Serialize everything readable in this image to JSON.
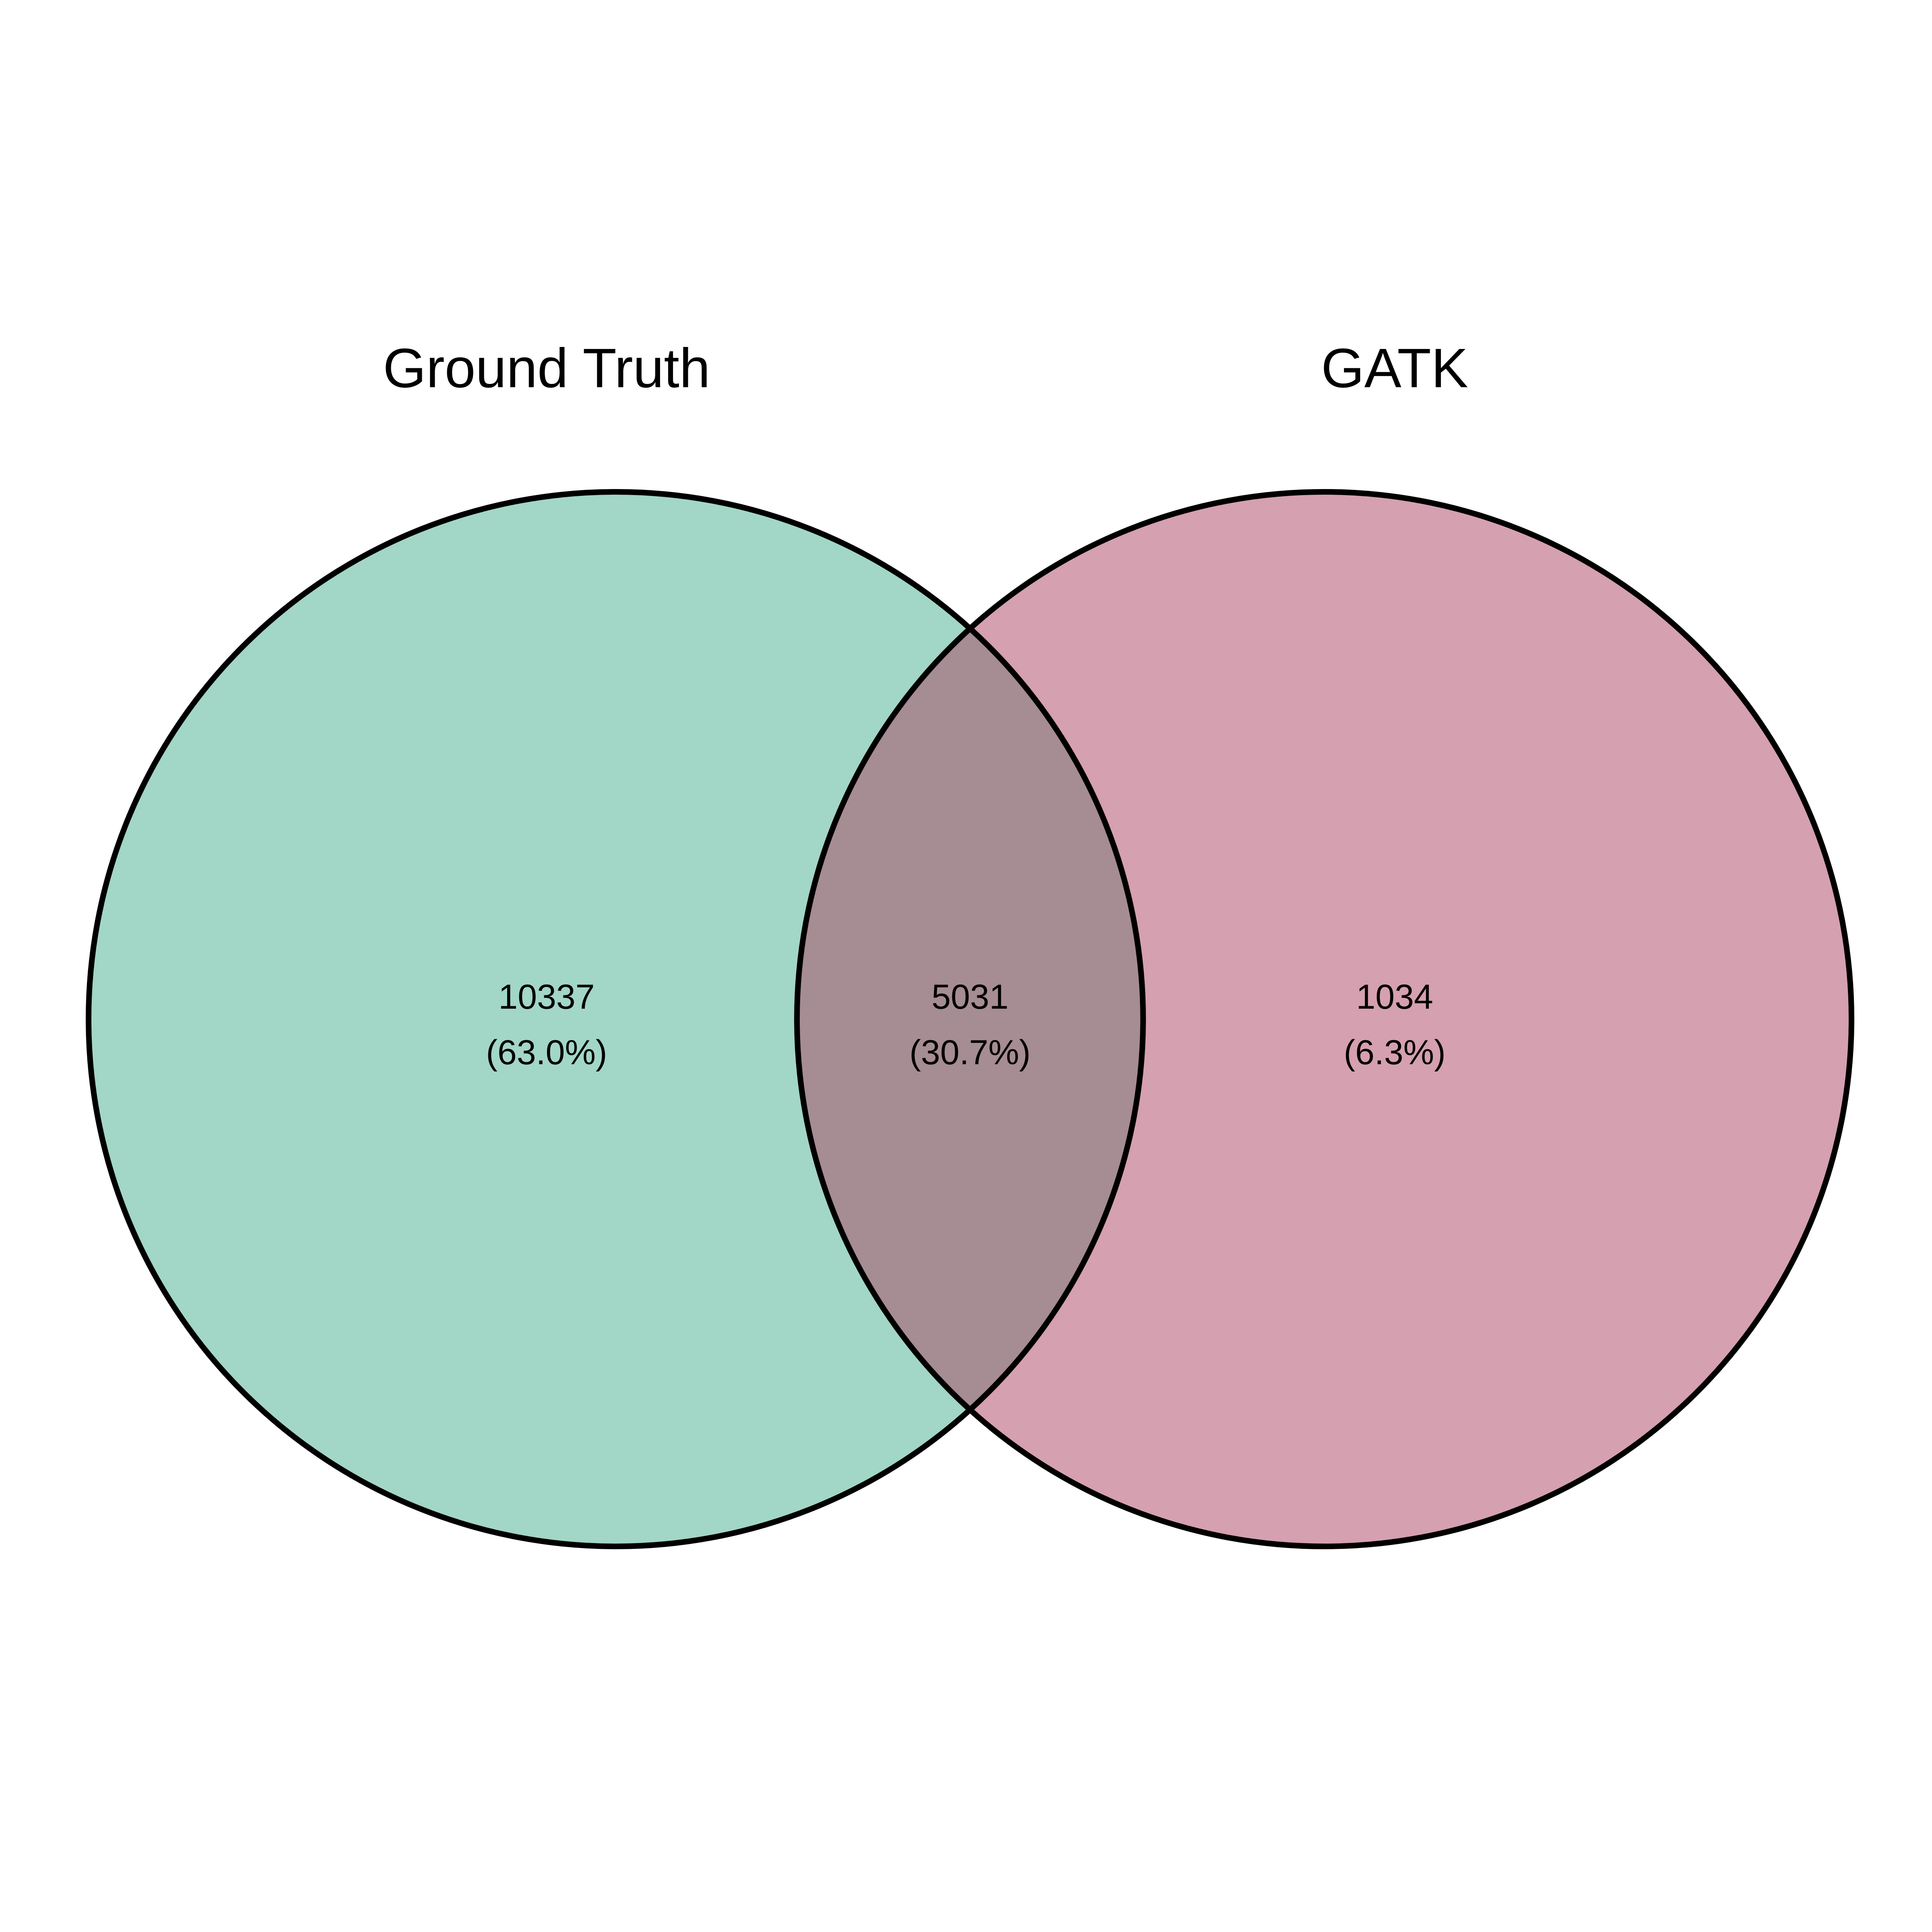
{
  "sets": [
    {
      "name": "Ground Truth",
      "color": "#a2d6c7"
    },
    {
      "name": "GATK",
      "color": "#d5a0b0"
    }
  ],
  "overlap_color": "#a68c93",
  "regions": {
    "ground_truth_only": {
      "count": "10337",
      "percent": "(63.0%)"
    },
    "intersection": {
      "count": "5031",
      "percent": "(30.7%)"
    },
    "gatk_only": {
      "count": "1034",
      "percent": "(6.3%)"
    }
  }
}
